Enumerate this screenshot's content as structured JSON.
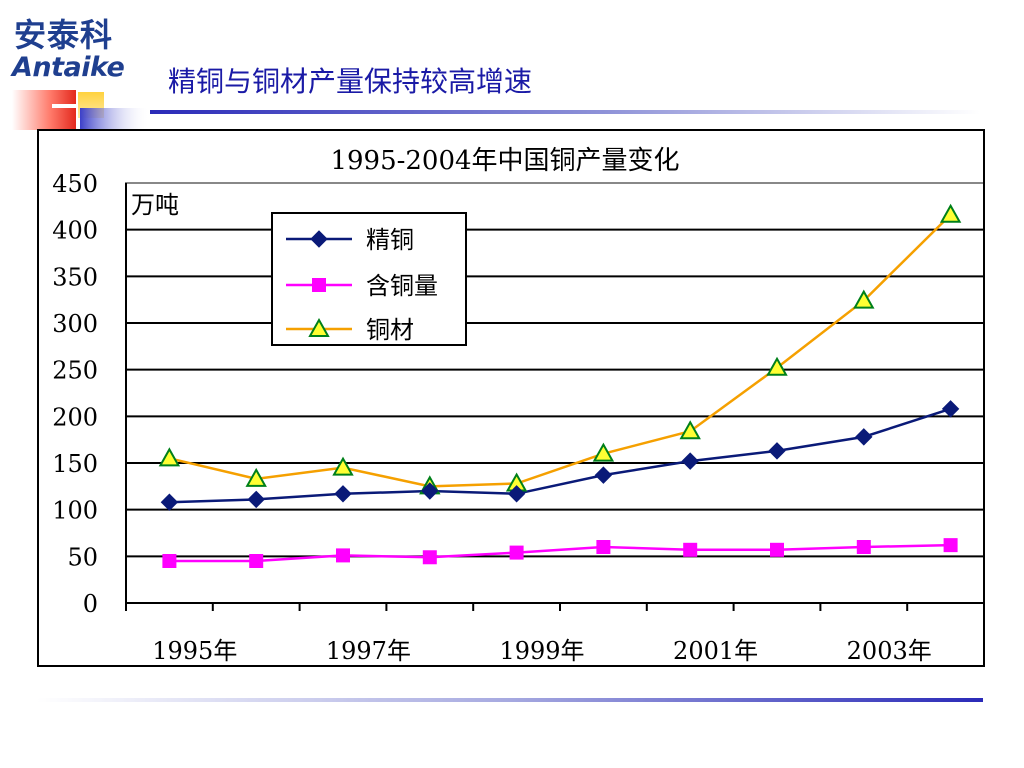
{
  "logo": {
    "chinese": "安泰科",
    "english": "Antaike"
  },
  "slide": {
    "title": "精铜与铜材产量保持较高增速"
  },
  "colors": {
    "brand_blue": "#1f3f8f",
    "title_blue": "#1a1aa6",
    "series_refined": "#0a1a78",
    "series_contained": "#ff00ff",
    "series_products": "#f5a000",
    "triangle_fill": "#ffff33",
    "triangle_edge": "#00801a"
  },
  "chart_data": {
    "type": "line",
    "title": "1995-2004年中国铜产量变化",
    "unit_label": "万吨",
    "x": [
      1995,
      1996,
      1997,
      1998,
      1999,
      2000,
      2001,
      2002,
      2003,
      2004
    ],
    "x_tick_labels": [
      "1995年",
      "1997年",
      "1999年",
      "2001年",
      "2003年"
    ],
    "ylim": [
      0,
      450
    ],
    "y_ticks": [
      0,
      50,
      100,
      150,
      200,
      250,
      300,
      350,
      400,
      450
    ],
    "grid": true,
    "legend_position": "top-left",
    "series": [
      {
        "name": "精铜",
        "marker": "diamond",
        "values": [
          108,
          111,
          117,
          120,
          117,
          137,
          152,
          163,
          178,
          208
        ]
      },
      {
        "name": "含铜量",
        "marker": "square",
        "values": [
          45,
          45,
          51,
          49,
          54,
          60,
          57,
          57,
          60,
          62
        ]
      },
      {
        "name": "铜材",
        "marker": "triangle",
        "values": [
          155,
          133,
          145,
          125,
          128,
          160,
          184,
          252,
          324,
          416
        ]
      }
    ]
  }
}
